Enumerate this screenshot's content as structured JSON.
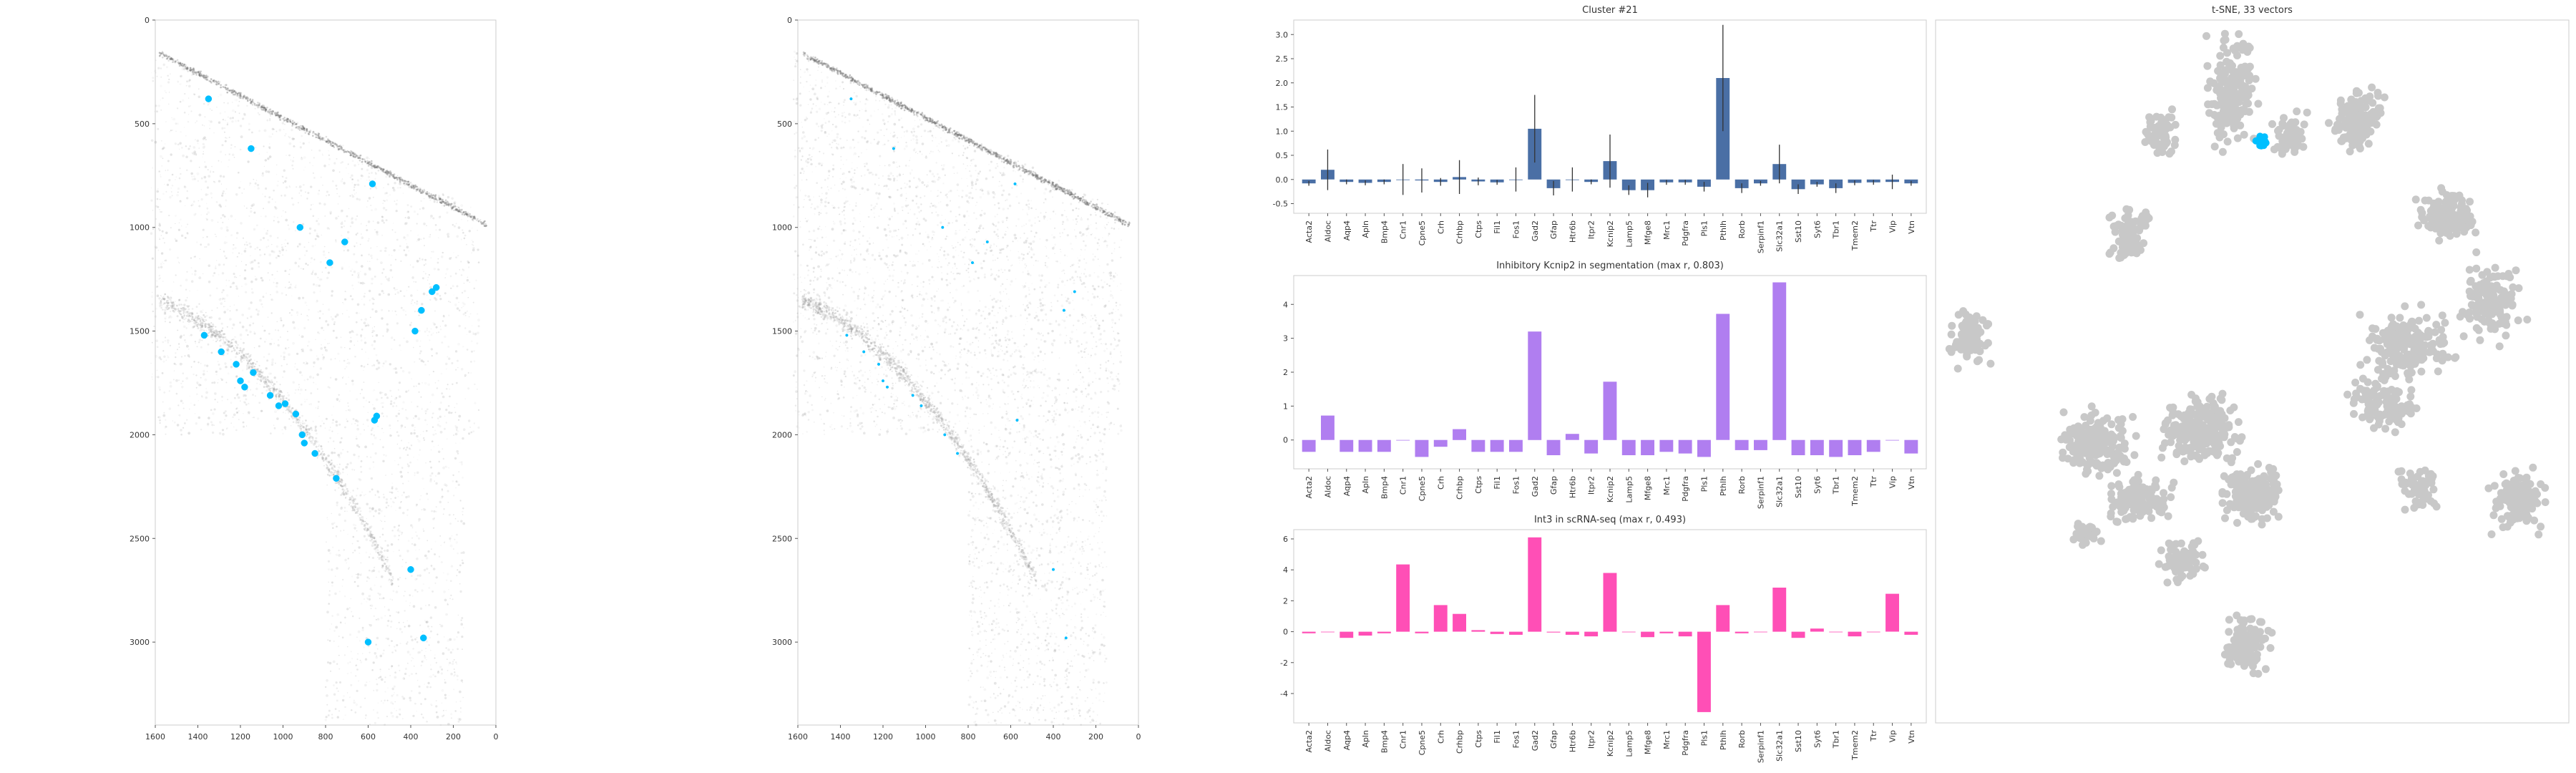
{
  "colors": {
    "spot": "#00bfff",
    "bar_cluster": "#4a6fa5",
    "bar_inhibitory": "#b07ef0",
    "bar_int": "#ff4fb6",
    "tsne": "#c8c8c8",
    "tissue": "#9a9a9a"
  },
  "chart_data": [
    {
      "type": "scatter",
      "title": "",
      "xlim": [
        1600,
        0
      ],
      "ylim": [
        3400,
        0
      ],
      "x_ticks": [
        "1600",
        "1400",
        "1200",
        "1000",
        "800",
        "600",
        "400",
        "200",
        "0"
      ],
      "y_ticks": [
        "0",
        "500",
        "1000",
        "1500",
        "2000",
        "2500",
        "3000"
      ],
      "points_x": [
        1350,
        1150,
        920,
        780,
        710,
        580,
        350,
        300,
        280,
        1370,
        1290,
        1220,
        1200,
        1180,
        1140,
        1060,
        1020,
        990,
        940,
        910,
        900,
        850,
        750,
        570,
        560,
        380,
        400,
        600,
        340
      ],
      "points_y": [
        380,
        620,
        1000,
        1170,
        1070,
        790,
        1400,
        1310,
        1290,
        1520,
        1600,
        1660,
        1740,
        1770,
        1700,
        1810,
        1860,
        1850,
        1900,
        2000,
        2040,
        2090,
        2210,
        1930,
        1910,
        1500,
        2650,
        3000,
        2980
      ]
    },
    {
      "type": "scatter",
      "title": "",
      "xlim": [
        1600,
        0
      ],
      "ylim": [
        3400,
        0
      ],
      "x_ticks": [
        "1600",
        "1400",
        "1200",
        "1000",
        "800",
        "600",
        "400",
        "200",
        "0"
      ],
      "y_ticks": [
        "0",
        "500",
        "1000",
        "1500",
        "2000",
        "2500",
        "3000"
      ],
      "points_x": [
        1350,
        1150,
        920,
        780,
        710,
        580,
        350,
        300,
        1370,
        1290,
        1220,
        1200,
        1180,
        1060,
        1020,
        910,
        850,
        570,
        400,
        340
      ],
      "points_y": [
        380,
        620,
        1000,
        1170,
        1070,
        790,
        1400,
        1310,
        1520,
        1600,
        1660,
        1740,
        1770,
        1810,
        1860,
        2000,
        2090,
        1930,
        2650,
        2980
      ]
    },
    {
      "type": "bar",
      "title": "Cluster #21",
      "categories": [
        "Acta2",
        "Aldoc",
        "Aqp4",
        "Apln",
        "Bmp4",
        "Cnr1",
        "Cpne5",
        "Crh",
        "Crhbp",
        "Ctps",
        "Fil1",
        "Fos1",
        "Gad2",
        "Gfap",
        "Htr6b",
        "Itpr2",
        "Kcnip2",
        "Lamp5",
        "Mfge8",
        "Mrc1",
        "Pdgfra",
        "Pls1",
        "Pthlh",
        "Rorb",
        "Serpinf1",
        "Slc32a1",
        "Sst10",
        "Syt6",
        "Tbr1",
        "Tmem2",
        "Ttr",
        "Vip",
        "Vtn"
      ],
      "values": [
        -0.08,
        0.2,
        -0.05,
        -0.07,
        -0.05,
        0.0,
        -0.02,
        -0.05,
        0.05,
        -0.04,
        -0.06,
        0.0,
        1.05,
        -0.18,
        0.0,
        -0.05,
        0.38,
        -0.22,
        -0.22,
        -0.06,
        -0.06,
        -0.15,
        2.1,
        -0.18,
        -0.08,
        0.32,
        -0.2,
        -0.1,
        -0.18,
        -0.07,
        -0.06,
        -0.05,
        -0.08
      ],
      "errors": [
        0.05,
        0.42,
        0.05,
        0.05,
        0.05,
        0.32,
        0.25,
        0.08,
        0.35,
        0.08,
        0.05,
        0.25,
        0.7,
        0.15,
        0.25,
        0.05,
        0.55,
        0.1,
        0.15,
        0.05,
        0.05,
        0.1,
        1.1,
        0.1,
        0.05,
        0.4,
        0.1,
        0.05,
        0.1,
        0.05,
        0.05,
        0.15,
        0.05
      ],
      "ylim": [
        -0.7,
        3.3
      ],
      "y_ticks": [
        -0.5,
        0.0,
        0.5,
        1.0,
        1.5,
        2.0,
        2.5,
        3.0
      ]
    },
    {
      "type": "bar",
      "title": "Inhibitory Kcnip2 in segmentation (max r, 0.803)",
      "categories": [
        "Acta2",
        "Aldoc",
        "Aqp4",
        "Apln",
        "Bmp4",
        "Cnr1",
        "Cpne5",
        "Crh",
        "Crhbp",
        "Ctps",
        "Fil1",
        "Fos1",
        "Gad2",
        "Gfap",
        "Htr6b",
        "Itpr2",
        "Kcnip2",
        "Lamp5",
        "Mfge8",
        "Mrc1",
        "Pdgfra",
        "Pls1",
        "Pthlh",
        "Rorb",
        "Serpinf1",
        "Slc32a1",
        "Sst10",
        "Syt6",
        "Tbr1",
        "Tmem2",
        "Ttr",
        "Vip",
        "Vtn"
      ],
      "values": [
        -0.35,
        0.72,
        -0.35,
        -0.35,
        -0.35,
        0.0,
        -0.5,
        -0.2,
        0.32,
        -0.35,
        -0.35,
        -0.35,
        3.2,
        -0.45,
        0.18,
        -0.4,
        1.72,
        -0.45,
        -0.45,
        -0.35,
        -0.4,
        -0.5,
        3.72,
        -0.3,
        -0.3,
        4.65,
        -0.45,
        -0.45,
        -0.5,
        -0.45,
        -0.35,
        0.0,
        -0.4
      ],
      "ylim": [
        -0.85,
        4.85
      ],
      "y_ticks": [
        0,
        1,
        2,
        3,
        4
      ]
    },
    {
      "type": "bar",
      "title": "Int3 in scRNA-seq (max r, 0.493)",
      "categories": [
        "Acta2",
        "Aldoc",
        "Aqp4",
        "Apln",
        "Bmp4",
        "Cnr1",
        "Cpne5",
        "Crh",
        "Crhbp",
        "Ctps",
        "Fil1",
        "Fos1",
        "Gad2",
        "Gfap",
        "Htr6b",
        "Itpr2",
        "Kcnip2",
        "Lamp5",
        "Mfge8",
        "Mrc1",
        "Pdgfra",
        "Pls1",
        "Pthlh",
        "Rorb",
        "Serpinf1",
        "Slc32a1",
        "Sst10",
        "Syt6",
        "Tbr1",
        "Tmem2",
        "Ttr",
        "Vip",
        "Vtn"
      ],
      "values": [
        -0.1,
        0.0,
        -0.4,
        -0.25,
        -0.1,
        4.35,
        -0.1,
        1.72,
        1.15,
        0.1,
        -0.15,
        -0.2,
        6.1,
        -0.05,
        -0.2,
        -0.3,
        3.8,
        0.0,
        -0.35,
        -0.1,
        -0.3,
        -5.2,
        1.72,
        -0.1,
        0.0,
        2.85,
        -0.4,
        0.2,
        0.0,
        -0.3,
        0.0,
        2.45,
        -0.2
      ],
      "ylim": [
        -5.9,
        6.6
      ],
      "y_ticks": [
        -4,
        -2,
        0,
        2,
        4,
        6
      ]
    },
    {
      "type": "scatter",
      "title": "t-SNE, 33 vectors"
    }
  ]
}
